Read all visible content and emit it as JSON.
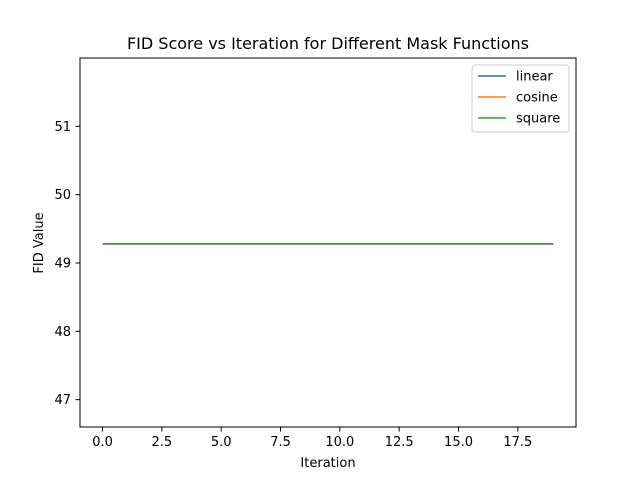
{
  "chart_data": {
    "type": "line",
    "title": "FID Score vs Iteration for Different Mask Functions",
    "xlabel": "Iteration",
    "ylabel": "FID Value",
    "xlim": [
      -0.95,
      19.95
    ],
    "ylim": [
      46.6,
      52.0
    ],
    "xticks": [
      0.0,
      2.5,
      5.0,
      7.5,
      10.0,
      12.5,
      15.0,
      17.5
    ],
    "xtick_labels": [
      "0.0",
      "2.5",
      "5.0",
      "7.5",
      "10.0",
      "12.5",
      "15.0",
      "17.5"
    ],
    "yticks": [
      47,
      48,
      49,
      50,
      51
    ],
    "ytick_labels": [
      "47",
      "48",
      "49",
      "50",
      "51"
    ],
    "grid": false,
    "legend_position": "top-right",
    "x": [
      0,
      1,
      2,
      3,
      4,
      5,
      6,
      7,
      8,
      9,
      10,
      11,
      12,
      13,
      14,
      15,
      16,
      17,
      18,
      19
    ],
    "series": [
      {
        "name": "linear",
        "color": "#1f77b4",
        "values": [
          49.28,
          49.28,
          49.28,
          49.28,
          49.28,
          49.28,
          49.28,
          49.28,
          49.28,
          49.28,
          49.28,
          49.28,
          49.28,
          49.28,
          49.28,
          49.28,
          49.28,
          49.28,
          49.28,
          49.28
        ]
      },
      {
        "name": "cosine",
        "color": "#ff7f0e",
        "values": [
          49.28,
          49.28,
          49.28,
          49.28,
          49.28,
          49.28,
          49.28,
          49.28,
          49.28,
          49.28,
          49.28,
          49.28,
          49.28,
          49.28,
          49.28,
          49.28,
          49.28,
          49.28,
          49.28,
          49.28
        ]
      },
      {
        "name": "square",
        "color": "#2ca02c",
        "values": [
          49.28,
          49.28,
          49.28,
          49.28,
          49.28,
          49.28,
          49.28,
          49.28,
          49.28,
          49.28,
          49.28,
          49.28,
          49.28,
          49.28,
          49.28,
          49.28,
          49.28,
          49.28,
          49.28,
          49.28
        ]
      }
    ]
  }
}
